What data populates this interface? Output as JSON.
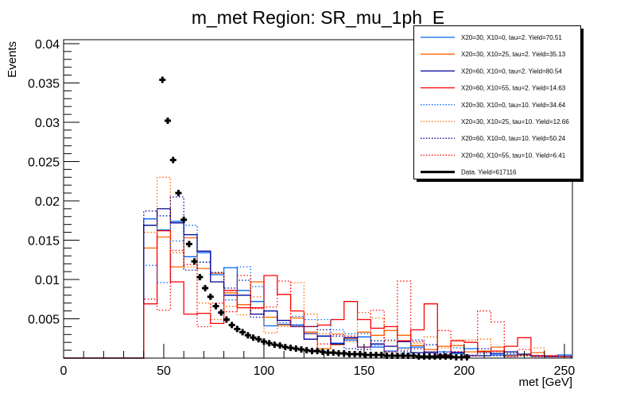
{
  "chart_data": {
    "type": "histogram",
    "title": "m_met Region: SR_mu_1ph_E",
    "xlabel": "met [GeV]",
    "ylabel": "Events",
    "xlim": [
      0,
      254
    ],
    "ylim": [
      0,
      0.0405
    ],
    "x_ticks": [
      0,
      50,
      100,
      150,
      200,
      250
    ],
    "y_ticks": [
      0.005,
      0.01,
      0.015,
      0.02,
      0.025,
      0.03,
      0.035,
      0.04
    ],
    "y_tick_labels": [
      "0.005",
      "0.01",
      "0.015",
      "0.02",
      "0.025",
      "0.03",
      "0.035",
      "0.04"
    ],
    "x_tick_labels": [
      "0",
      "50",
      "100",
      "150",
      "200",
      "250"
    ],
    "grid": false,
    "legend_position": "top-right",
    "bin_edges_start": 40,
    "bin_width": 6.6667,
    "series": [
      {
        "name": "X20=30, X10=0, tau=2. Yield=70.51",
        "color": "#0064ff",
        "style": "solid",
        "values": [
          0.0177,
          0.0163,
          0.0174,
          0.0129,
          0.0134,
          0.0106,
          0.0115,
          0.0086,
          0.0072,
          0.0041,
          0.0043,
          0.0042,
          0.0031,
          0.0028,
          0.0019,
          0.0023,
          0.0027,
          0.0014,
          0.0009,
          0.0013,
          0.0014,
          0.0008,
          0.0008,
          0.0006,
          0.0012,
          0.0008,
          0.0004,
          0.0004,
          0.0004,
          0.0003,
          0.0002,
          0.0004
        ]
      },
      {
        "name": "X20=30, X10=25, tau=2. Yield=35.13",
        "color": "#ff6600",
        "style": "solid",
        "values": [
          0.014,
          0.0154,
          0.0116,
          0.0153,
          0.0114,
          0.0108,
          0.0083,
          0.0068,
          0.0097,
          0.0052,
          0.0042,
          0.0051,
          0.0033,
          0.0012,
          0.0017,
          0.0025,
          0.0033,
          0.0029,
          0.0035,
          0.0029,
          0.0016,
          0.0011,
          0.0015,
          0.0016,
          0.0008,
          0.0009,
          0.0014,
          0.0003,
          0.0004,
          0.0007,
          0.0002,
          0.0002
        ]
      },
      {
        "name": "X20=60, X10=0, tau=2. Yield=80.54",
        "color": "#000099",
        "style": "solid",
        "values": [
          0.0169,
          0.019,
          0.0172,
          0.0157,
          0.0136,
          0.0097,
          0.008,
          0.008,
          0.0056,
          0.006,
          0.0048,
          0.004,
          0.0024,
          0.0028,
          0.0018,
          0.0026,
          0.0014,
          0.0018,
          0.0015,
          0.0021,
          0.0007,
          0.0007,
          0.0004,
          0.0007,
          0.0003,
          0.0003,
          0.0006,
          0.0008,
          0.0005,
          0.0003,
          0.0002,
          0.0002
        ]
      },
      {
        "name": "X20=60, X10=55, tau=2. Yield=14.63",
        "color": "#ff0000",
        "style": "solid",
        "values": [
          0.0069,
          0.0162,
          0.0097,
          0.0056,
          0.0057,
          0.0044,
          0.0086,
          0.0064,
          0.0064,
          0.0105,
          0.0081,
          0.006,
          0.004,
          0.0042,
          0.0049,
          0.0072,
          0.0049,
          0.0038,
          0.004,
          0.0022,
          0.0036,
          0.0069,
          0.0004,
          0.0022,
          0.002,
          0.0008,
          0.0009,
          0.0015,
          0.0026,
          0.0003,
          0.0003,
          0.0002
        ]
      },
      {
        "name": "X20=30, X10=0, tau=10. Yield=34.64",
        "color": "#0064ff",
        "style": "dotted",
        "values": [
          0.0118,
          0.0096,
          0.0149,
          0.0169,
          0.0122,
          0.0109,
          0.0074,
          0.0116,
          0.0091,
          0.006,
          0.0045,
          0.0053,
          0.0049,
          0.0049,
          0.0036,
          0.0031,
          0.0031,
          0.0016,
          0.0023,
          0.0006,
          0.0023,
          0.0008,
          0.0006,
          0.0013,
          0.0004,
          0.0006,
          0.0004,
          0.0002,
          0.0003,
          0.0002,
          0.0002,
          0.0002
        ]
      },
      {
        "name": "X20=30, X10=25, tau=10. Yield=12.66",
        "color": "#ff6600",
        "style": "dotted",
        "values": [
          0.016,
          0.023,
          0.0134,
          0.0116,
          0.007,
          0.0049,
          0.0066,
          0.0055,
          0.0078,
          0.0032,
          0.004,
          0.0096,
          0.0056,
          0.0031,
          0.0031,
          0.0021,
          0.0058,
          0.0051,
          0.0022,
          0.0011,
          0.0019,
          0.0027,
          0.0013,
          0.0023,
          0.0023,
          0.0024,
          0.0008,
          0.0002,
          0.0003,
          0.0013,
          0.0002,
          0.0002
        ]
      },
      {
        "name": "X20=60, X10=0, tau=10. Yield=50.24",
        "color": "#000099",
        "style": "dotted",
        "values": [
          0.0187,
          0.0181,
          0.0205,
          0.0112,
          0.0122,
          0.0109,
          0.0089,
          0.0099,
          0.0052,
          0.006,
          0.0048,
          0.0042,
          0.004,
          0.0036,
          0.0028,
          0.0012,
          0.0011,
          0.0022,
          0.0008,
          0.0009,
          0.0012,
          0.0017,
          0.0004,
          0.0008,
          0.0003,
          0.0012,
          0.0003,
          0.0006,
          0.0003,
          0.0002,
          0.0002,
          0.0002
        ]
      },
      {
        "name": "X20=60, X10=55, tau=10. Yield=6.41",
        "color": "#ff0000",
        "style": "dotted",
        "values": [
          0.0075,
          0.0061,
          0.0137,
          0.0119,
          0.004,
          0.007,
          0.0059,
          0.0105,
          0.0063,
          0.0065,
          0.0098,
          0.004,
          0.0031,
          0.0018,
          0.003,
          0.0028,
          0.0014,
          0.0061,
          0.0008,
          0.0098,
          0.0021,
          0.0008,
          0.0035,
          0.0008,
          0.0003,
          0.006,
          0.0046,
          0.0002,
          0.0011,
          0.0002,
          0.0002,
          0.0002
        ]
      }
    ],
    "data": {
      "name": "Data. Yield=617116",
      "color": "#000000",
      "x": [
        49.33,
        52,
        54.67,
        57.33,
        60,
        62.67,
        65.33,
        68,
        70.67,
        73.33,
        76,
        78.67,
        81.33,
        84,
        86.67,
        89.33,
        92,
        94.67,
        97.33,
        100,
        102.67,
        105.33,
        108,
        110.67,
        113.33,
        116,
        118.67,
        121.33,
        124,
        126.67,
        129.33,
        132,
        134.67,
        137.33,
        140,
        142.67,
        145.33,
        148,
        150.67,
        153.33,
        156,
        158.67,
        161.33,
        164,
        166.67,
        169.33,
        172,
        174.67,
        177.33,
        180,
        182.67,
        185.33,
        188,
        190.67,
        193.33,
        196,
        198.67,
        201.33
      ],
      "y": [
        0.0354,
        0.0302,
        0.0252,
        0.021,
        0.0176,
        0.0145,
        0.0123,
        0.0103,
        0.0089,
        0.0078,
        0.0066,
        0.0058,
        0.0049,
        0.0042,
        0.0037,
        0.0033,
        0.0029,
        0.0026,
        0.0024,
        0.0021,
        0.0019,
        0.0017,
        0.0016,
        0.0014,
        0.0013,
        0.0012,
        0.0011,
        0.001,
        0.0009,
        0.0009,
        0.0008,
        0.0007,
        0.0007,
        0.0006,
        0.0006,
        0.0005,
        0.0005,
        0.0005,
        0.0004,
        0.0004,
        0.0004,
        0.0004,
        0.0003,
        0.0003,
        0.0003,
        0.0003,
        0.0003,
        0.0003,
        0.0002,
        0.0002,
        0.0002,
        0.0002,
        0.0002,
        0.0002,
        0.0002,
        0.0001,
        0.0001,
        0.0001
      ]
    }
  }
}
